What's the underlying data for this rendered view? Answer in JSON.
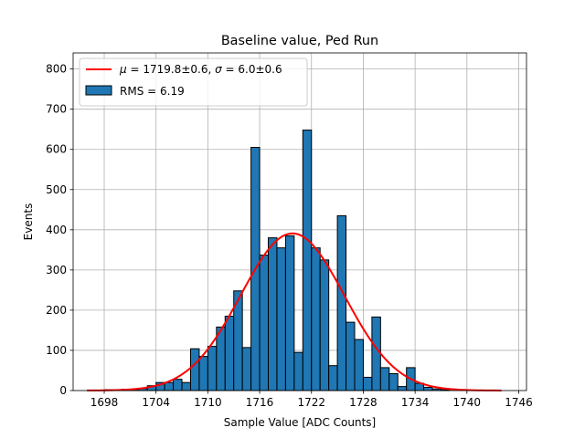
{
  "chart_data": {
    "type": "bar",
    "title": "Baseline value, Ped Run",
    "xlabel": "Sample Value [ADC Counts]",
    "ylabel": "Events",
    "xlim": [
      1694.4,
      1746.9
    ],
    "ylim": [
      0,
      840
    ],
    "xticks": [
      1698,
      1704,
      1710,
      1716,
      1722,
      1728,
      1734,
      1740,
      1746
    ],
    "yticks": [
      0,
      100,
      200,
      300,
      400,
      500,
      600,
      700,
      800
    ],
    "grid": true,
    "legend_position": "upper-left",
    "colors": {
      "bar_fill": "#1f77b4",
      "bar_edge": "#000000",
      "fit_line": "#ff0000",
      "grid": "#b0b0b0"
    },
    "series": [
      {
        "name": "RMS = 6.19",
        "kind": "histogram",
        "bin_width": 1,
        "x": [
          1697.5,
          1698.5,
          1699.5,
          1700.5,
          1701.5,
          1702.5,
          1703.5,
          1704.5,
          1705.5,
          1706.5,
          1707.5,
          1708.5,
          1709.5,
          1710.5,
          1711.5,
          1712.5,
          1713.5,
          1714.5,
          1715.5,
          1716.5,
          1717.5,
          1718.5,
          1719.5,
          1720.5,
          1721.5,
          1722.5,
          1723.5,
          1724.5,
          1725.5,
          1726.5,
          1727.5,
          1728.5,
          1729.5,
          1730.5,
          1731.5,
          1732.5,
          1733.5,
          1734.5,
          1735.5,
          1736.5,
          1737.5
        ],
        "values": [
          1,
          2,
          1,
          3,
          3,
          5,
          12,
          20,
          20,
          28,
          20,
          104,
          85,
          110,
          158,
          185,
          248,
          107,
          605,
          337,
          380,
          355,
          385,
          95,
          648,
          355,
          325,
          62,
          435,
          170,
          127,
          33,
          183,
          57,
          42,
          10,
          57,
          18,
          8,
          4,
          2
        ]
      },
      {
        "name": "$\\mu = 1719.8$±0.6, $\\sigma = 6.0$±0.6",
        "kind": "gaussian-fit",
        "mu": 1719.8,
        "sigma": 6.0,
        "amplitude": 391,
        "x_range": [
          1696,
          1744
        ]
      }
    ],
    "legend": {
      "fit_label_parts": [
        "μ",
        " = 1719.8±0.6, ",
        "σ",
        " = 6.0±0.6"
      ],
      "hist_label": "RMS = 6.19"
    }
  }
}
